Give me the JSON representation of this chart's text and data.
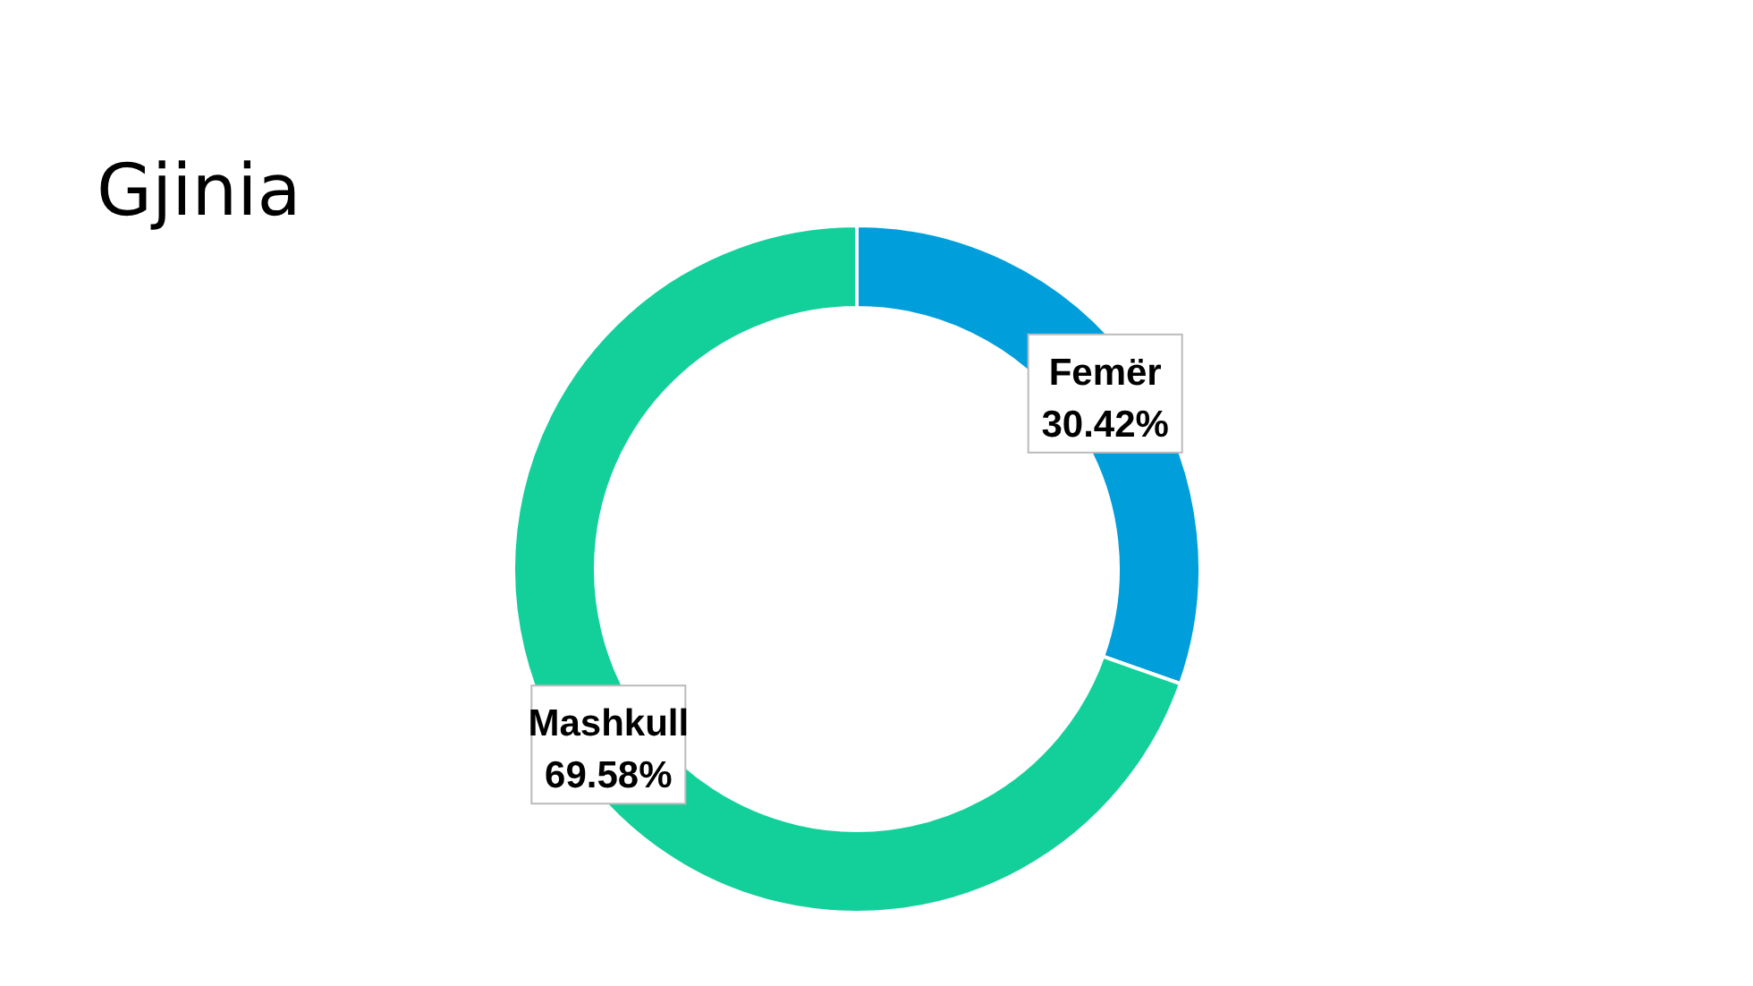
{
  "chart_data": {
    "type": "donut",
    "title": "Gjinia",
    "categories": [
      "Femër",
      "Mashkull"
    ],
    "values": [
      30.42,
      69.58
    ],
    "colors": [
      "#009fdb",
      "#13d09a"
    ],
    "value_labels": [
      "30.42%",
      "69.58%"
    ]
  }
}
